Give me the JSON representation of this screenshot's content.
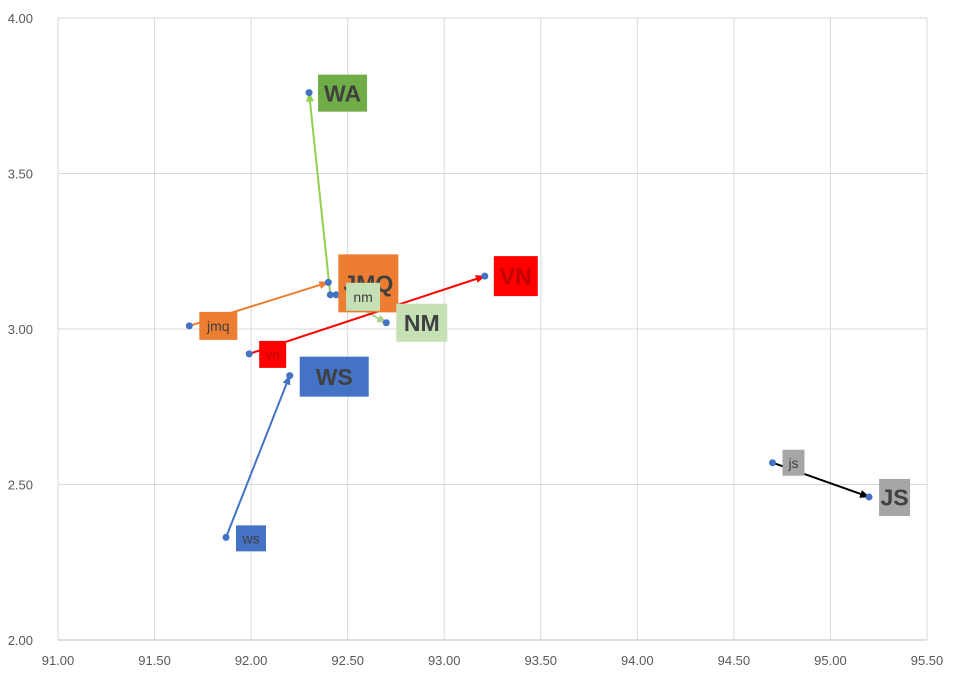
{
  "chart_data": {
    "type": "scatter",
    "xlim": [
      91.0,
      95.5
    ],
    "ylim": [
      2.0,
      4.0
    ],
    "x_ticks": [
      "91.00",
      "91.50",
      "92.00",
      "92.50",
      "93.00",
      "93.50",
      "94.00",
      "94.50",
      "95.00",
      "95.50"
    ],
    "y_ticks": [
      "2.00",
      "2.50",
      "3.00",
      "3.50",
      "4.00"
    ],
    "grid": true,
    "point_color": "#4472c4",
    "arrows": [
      {
        "from": {
          "label": "ws",
          "x": 91.87,
          "y": 2.33
        },
        "to": {
          "label": "WS",
          "x": 92.2,
          "y": 2.85
        },
        "color": "#4472c4",
        "box_color": "#4472c4",
        "text_color": "#404040"
      },
      {
        "from": {
          "label": "jmq",
          "x": 91.68,
          "y": 3.01
        },
        "to": {
          "label": "JMQ",
          "x": 92.4,
          "y": 3.15
        },
        "color": "#ed7d31",
        "box_color": "#ed7d31",
        "text_color": "#404040"
      },
      {
        "from": {
          "label": "nm",
          "x": 92.44,
          "y": 3.11
        },
        "to": {
          "label": "NM",
          "x": 92.7,
          "y": 3.02
        },
        "color": "#a9d18e",
        "box_color": "#c5e0b4",
        "text_color": "#404040"
      },
      {
        "from": {
          "label": "vn",
          "x": 91.99,
          "y": 2.92
        },
        "to": {
          "label": "VN",
          "x": 93.21,
          "y": 3.17
        },
        "color": "#ff0000",
        "box_color": "#ff0000",
        "text_color": "#c00000"
      },
      {
        "from": {
          "label": "js",
          "x": 94.7,
          "y": 2.57
        },
        "to": {
          "label": "JS",
          "x": 95.2,
          "y": 2.46
        },
        "color": "#000000",
        "box_color": "#a6a6a6",
        "text_color": "#404040"
      },
      {
        "from": {
          "label": "nm",
          "x": 92.41,
          "y": 3.11
        },
        "to": {
          "label": "WA",
          "x": 92.3,
          "y": 3.76
        },
        "color": "#92d050",
        "box_color": "#70ad47",
        "text_color": "#404040",
        "from_label_hidden": true
      }
    ]
  }
}
